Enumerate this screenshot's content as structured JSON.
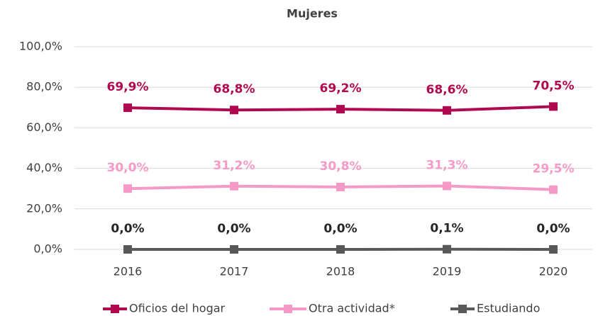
{
  "chart_data": {
    "type": "line",
    "title": "Mujeres",
    "categories": [
      "2016",
      "2017",
      "2018",
      "2019",
      "2020"
    ],
    "series": [
      {
        "name": "Oficios del hogar",
        "color": "#b0094f",
        "values": [
          69.9,
          68.8,
          69.2,
          68.6,
          70.5
        ],
        "value_labels": [
          "69,9%",
          "68,8%",
          "69,2%",
          "68,6%",
          "70,5%"
        ]
      },
      {
        "name": "Otra actividad*",
        "color": "#f59ac7",
        "values": [
          30.0,
          31.2,
          30.8,
          31.3,
          29.5
        ],
        "value_labels": [
          "30,0%",
          "31,2%",
          "30,8%",
          "31,3%",
          "29,5%"
        ]
      },
      {
        "name": "Estudiando",
        "color": "#595959",
        "values": [
          0.0,
          0.0,
          0.0,
          0.1,
          0.0
        ],
        "value_labels": [
          "0,0%",
          "0,0%",
          "0,0%",
          "0,1%",
          "0,0%"
        ]
      }
    ],
    "ylim": [
      0,
      100
    ],
    "yticks": [
      {
        "value": 0,
        "label": "0,0%"
      },
      {
        "value": 20,
        "label": "20,0%"
      },
      {
        "value": 40,
        "label": "40,0%"
      },
      {
        "value": 60,
        "label": "60,0%"
      },
      {
        "value": 80,
        "label": "80,0%"
      },
      {
        "value": 100,
        "label": "100,0%"
      }
    ],
    "grid": true,
    "legend": "bottom"
  }
}
